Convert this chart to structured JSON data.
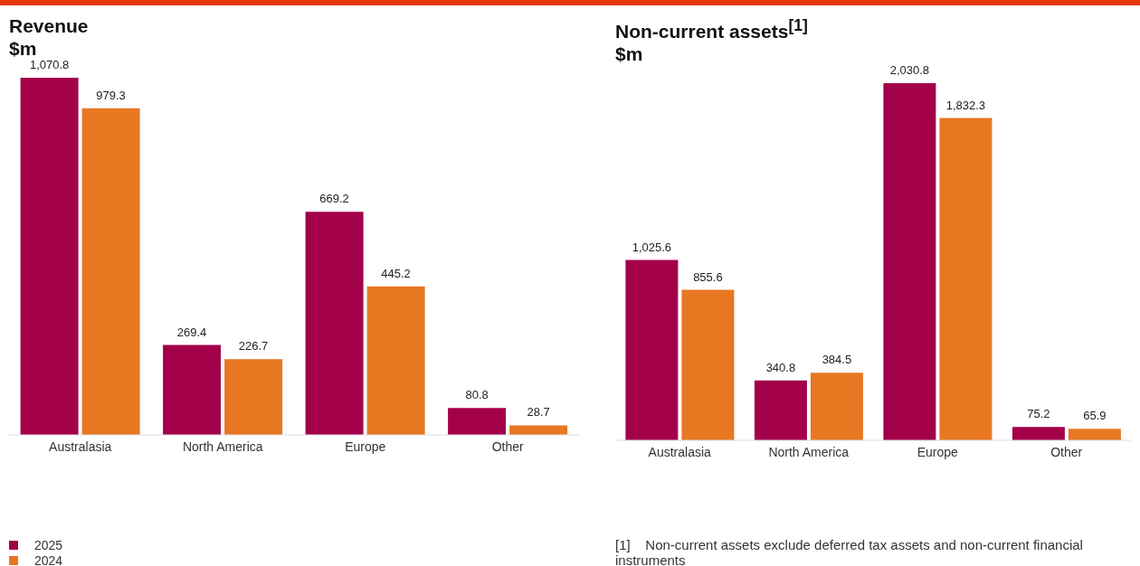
{
  "chart_data": [
    {
      "type": "bar",
      "title": "Revenue",
      "subtitle": "$m",
      "categories": [
        "Australasia",
        "North America",
        "Europe",
        "Other"
      ],
      "series": [
        {
          "name": "2025",
          "color": "#a3004a",
          "values": [
            1070.8,
            269.4,
            669.2,
            80.8
          ],
          "value_labels": [
            "1,070.8",
            "269.4",
            "669.2",
            "80.8"
          ]
        },
        {
          "name": "2024",
          "color": "#e87722",
          "values": [
            979.3,
            226.7,
            445.2,
            28.7
          ],
          "value_labels": [
            "979.3",
            "226.7",
            "445.2",
            "28.7"
          ]
        }
      ],
      "legend": "bottom",
      "grid": false
    },
    {
      "type": "bar",
      "title": "Non-current assets$^{[1]}$",
      "subtitle": "$m",
      "categories": [
        "Australasia",
        "North America",
        "Europe",
        "Other"
      ],
      "series": [
        {
          "color": "#a3004a",
          "values": [
            1025.6,
            340.8,
            2030.8,
            75.2
          ],
          "value_labels": [
            "1,025.6",
            "340.8",
            "2,030.8",
            "75.2"
          ]
        },
        {
          "color": "#e87722",
          "values": [
            855.6,
            384.5,
            1832.3,
            65.9
          ],
          "value_labels": [
            "855.6",
            "384.5",
            "1,832.3",
            "65.9"
          ]
        }
      ],
      "grid": false,
      "annotations": [
        "[1]    Non-current assets exclude deferred tax assets and non-current financial instruments"
      ]
    }
  ]
}
